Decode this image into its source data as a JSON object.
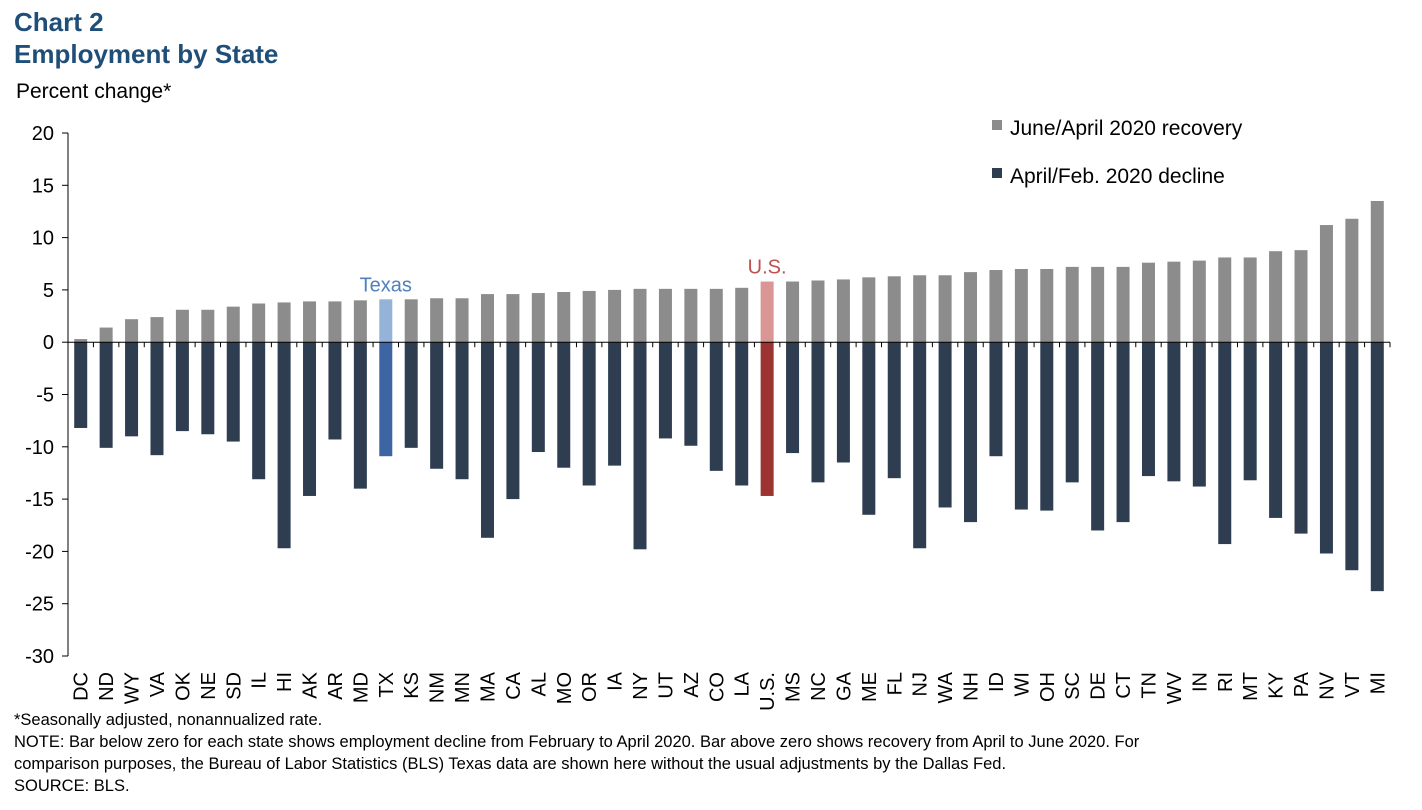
{
  "chart_data": {
    "type": "bar",
    "title": "Chart 2",
    "subtitle": "Employment by State",
    "ylabel": "Percent change*",
    "ylim": [
      -30,
      20
    ],
    "yticks": [
      20,
      15,
      10,
      5,
      0,
      -5,
      -10,
      -15,
      -20,
      -25,
      -30
    ],
    "legend_position": "top-right",
    "categories": [
      "DC",
      "ND",
      "WY",
      "VA",
      "OK",
      "NE",
      "SD",
      "IL",
      "HI",
      "AK",
      "AR",
      "MD",
      "TX",
      "KS",
      "NM",
      "MN",
      "MA",
      "CA",
      "AL",
      "MO",
      "OR",
      "IA",
      "NY",
      "UT",
      "AZ",
      "CO",
      "LA",
      "U.S.",
      "MS",
      "NC",
      "GA",
      "ME",
      "FL",
      "NJ",
      "WA",
      "NH",
      "ID",
      "WI",
      "OH",
      "SC",
      "DE",
      "CT",
      "TN",
      "WV",
      "IN",
      "RI",
      "MT",
      "KY",
      "PA",
      "NV",
      "VT",
      "MI"
    ],
    "series": [
      {
        "name": "June/April 2020 recovery",
        "color": "#8c8c8c",
        "values": [
          0.3,
          1.4,
          2.2,
          2.4,
          3.1,
          3.1,
          3.4,
          3.7,
          3.8,
          3.9,
          3.9,
          4.0,
          4.1,
          4.1,
          4.2,
          4.2,
          4.6,
          4.6,
          4.7,
          4.8,
          4.9,
          5.0,
          5.1,
          5.1,
          5.1,
          5.1,
          5.2,
          5.8,
          5.8,
          5.9,
          6.0,
          6.2,
          6.3,
          6.4,
          6.4,
          6.7,
          6.9,
          7.0,
          7.0,
          7.2,
          7.2,
          7.2,
          7.6,
          7.7,
          7.8,
          8.1,
          8.1,
          8.7,
          8.8,
          11.2,
          11.8,
          13.5
        ]
      },
      {
        "name": "April/Feb. 2020 decline",
        "color": "#2e3e50",
        "values": [
          -8.2,
          -10.1,
          -9.0,
          -10.8,
          -8.5,
          -8.8,
          -9.5,
          -13.1,
          -19.7,
          -14.7,
          -9.3,
          -14.0,
          -10.9,
          -10.1,
          -12.1,
          -13.1,
          -18.7,
          -15.0,
          -10.5,
          -12.0,
          -13.7,
          -11.8,
          -19.8,
          -9.2,
          -9.9,
          -12.3,
          -13.7,
          -14.7,
          -10.6,
          -13.4,
          -11.5,
          -16.5,
          -13.0,
          -19.7,
          -15.8,
          -17.2,
          -10.9,
          -16.0,
          -16.1,
          -13.4,
          -18.0,
          -17.2,
          -12.8,
          -13.3,
          -13.8,
          -19.3,
          -13.2,
          -16.8,
          -18.3,
          -20.2,
          -21.8,
          -23.8
        ]
      }
    ],
    "highlights": [
      {
        "category": "TX",
        "label": "Texas",
        "label_color": "#4f81bd",
        "colors": [
          "#95b3d7",
          "#3d64a3"
        ]
      },
      {
        "category": "U.S.",
        "label": "U.S.",
        "label_color": "#c0504d",
        "colors": [
          "#d99694",
          "#9b3330"
        ]
      }
    ]
  },
  "notes": {
    "footnote": "*Seasonally adjusted, nonannualized  rate.",
    "note_line1": "NOTE: Bar below zero for each state shows employment decline from February to April 2020. Bar above zero shows recovery from April to June 2020. For",
    "note_line2": "comparison purposes, the Bureau of Labor Statistics (BLS) Texas data are shown here without the usual adjustments by the Dallas Fed.",
    "source": "SOURCE: BLS."
  }
}
